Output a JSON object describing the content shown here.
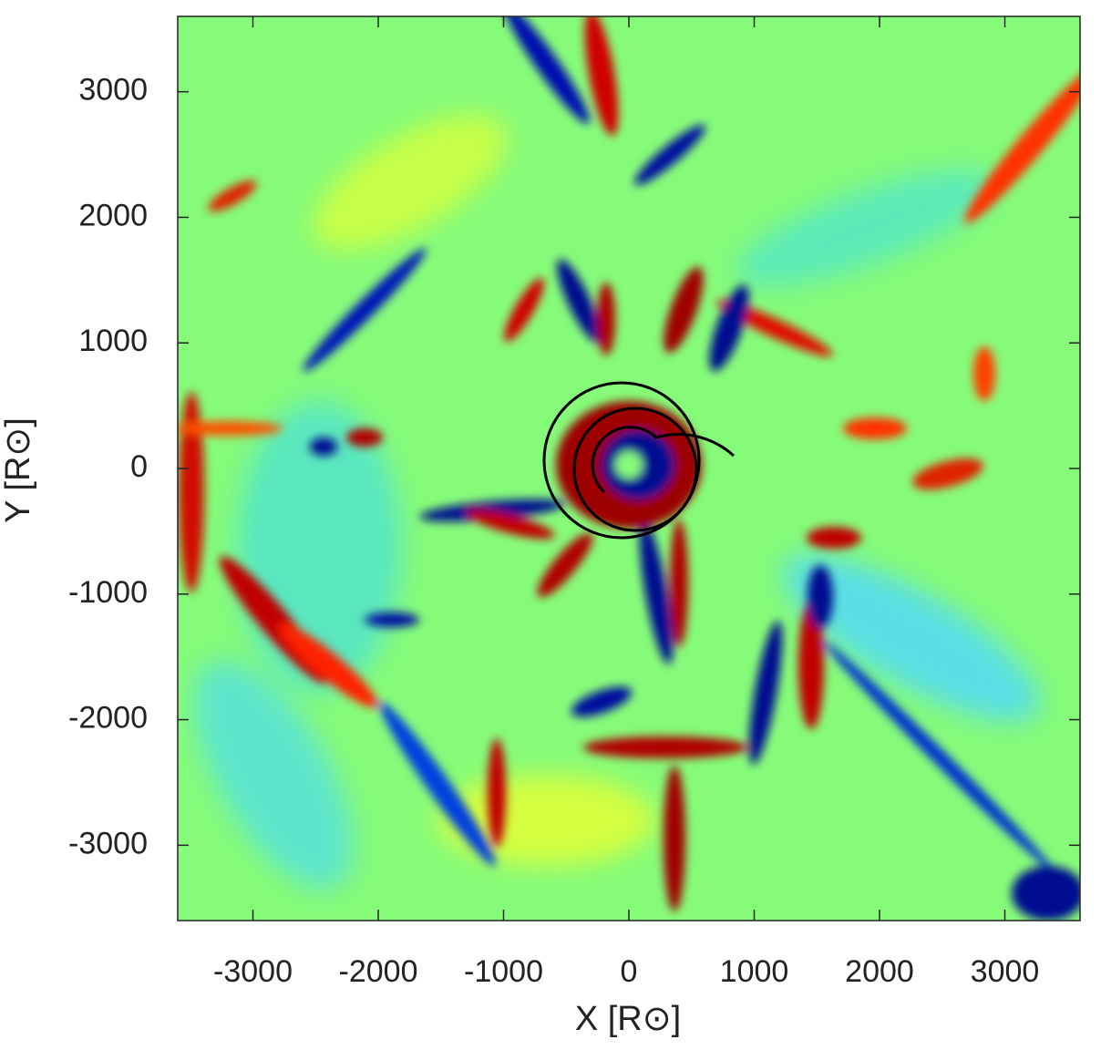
{
  "chart_data": {
    "type": "heatmap",
    "xlabel": "X [R⊙]",
    "ylabel": "Y [R⊙]",
    "xlim": [
      -3600,
      3600
    ],
    "ylim": [
      -3600,
      3600
    ],
    "xticks": [
      -3000,
      -2000,
      -1000,
      0,
      1000,
      2000,
      3000
    ],
    "yticks": [
      -3000,
      -2000,
      -1000,
      0,
      1000,
      2000,
      3000
    ],
    "grid": false
  }
}
